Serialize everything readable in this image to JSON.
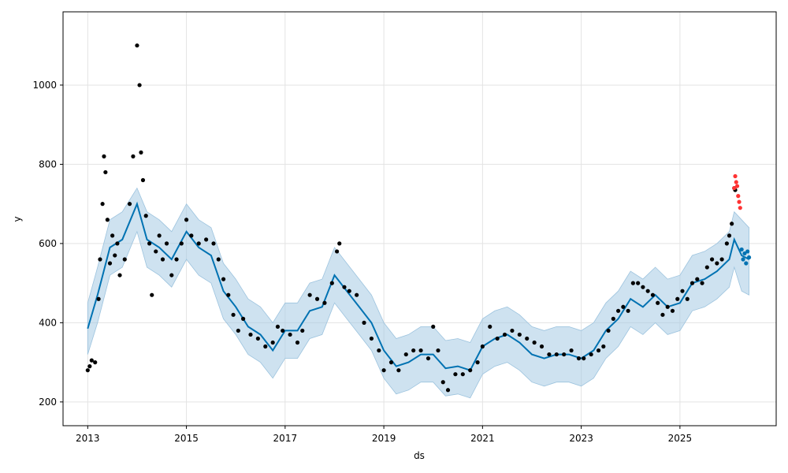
{
  "chart_data": {
    "type": "scatter",
    "title": "",
    "xlabel": "ds",
    "ylabel": "y",
    "xlim": [
      2012.5,
      2026.95
    ],
    "ylim": [
      140,
      1185
    ],
    "x_ticks": [
      2013,
      2015,
      2017,
      2019,
      2021,
      2023,
      2025
    ],
    "y_ticks": [
      200,
      400,
      600,
      800,
      1000
    ],
    "grid": true,
    "legend": "none",
    "colors": {
      "observed": "#000000",
      "recent": "#ff3333",
      "forecast_line": "#0072b2",
      "interval_fill": "#a6cbe3"
    },
    "series": [
      {
        "role": "observed",
        "x": [
          2013.0,
          2013.04,
          2013.08,
          2013.15,
          2013.22,
          2013.25,
          2013.3,
          2013.33,
          2013.36,
          2013.4,
          2013.45,
          2013.5,
          2013.55,
          2013.6,
          2013.65,
          2013.75,
          2013.85,
          2013.92,
          2014.0,
          2014.05,
          2014.08,
          2014.12,
          2014.18,
          2014.25,
          2014.3,
          2014.38,
          2014.45,
          2014.52,
          2014.6,
          2014.7,
          2014.8,
          2014.9,
          2015.0,
          2015.1,
          2015.25,
          2015.4,
          2015.55,
          2015.65,
          2015.75,
          2015.85,
          2015.95,
          2016.05,
          2016.15,
          2016.3,
          2016.45,
          2016.6,
          2016.75,
          2016.85,
          2016.95,
          2017.1,
          2017.25,
          2017.35,
          2017.5,
          2017.65,
          2017.8,
          2017.95,
          2018.05,
          2018.1,
          2018.2,
          2018.3,
          2018.45,
          2018.6,
          2018.75,
          2018.9,
          2019.0,
          2019.15,
          2019.3,
          2019.45,
          2019.6,
          2019.75,
          2019.9,
          2020.0,
          2020.1,
          2020.2,
          2020.3,
          2020.45,
          2020.6,
          2020.75,
          2020.9,
          2021.0,
          2021.15,
          2021.3,
          2021.45,
          2021.6,
          2021.75,
          2021.9,
          2022.05,
          2022.2,
          2022.35,
          2022.5,
          2022.65,
          2022.8,
          2022.95,
          2023.05,
          2023.2,
          2023.35,
          2023.45,
          2023.55,
          2023.65,
          2023.75,
          2023.85,
          2023.95,
          2024.05,
          2024.15,
          2024.25,
          2024.35,
          2024.45,
          2024.55,
          2024.65,
          2024.75,
          2024.85,
          2024.95,
          2025.05,
          2025.15,
          2025.25,
          2025.35,
          2025.45,
          2025.55,
          2025.65,
          2025.75,
          2025.85,
          2025.95,
          2026.0,
          2026.05,
          2026.1,
          2026.12
        ],
        "y": [
          280,
          290,
          305,
          300,
          460,
          560,
          700,
          820,
          780,
          660,
          550,
          620,
          570,
          600,
          520,
          560,
          700,
          820,
          1100,
          1000,
          830,
          760,
          670,
          600,
          470,
          580,
          620,
          560,
          600,
          520,
          560,
          600,
          660,
          620,
          600,
          610,
          600,
          560,
          510,
          470,
          420,
          380,
          410,
          370,
          360,
          340,
          350,
          390,
          380,
          370,
          350,
          380,
          470,
          460,
          450,
          500,
          580,
          600,
          490,
          480,
          470,
          400,
          360,
          330,
          280,
          300,
          280,
          320,
          330,
          330,
          310,
          390,
          330,
          250,
          230,
          270,
          270,
          280,
          300,
          340,
          390,
          360,
          370,
          380,
          370,
          360,
          350,
          340,
          320,
          320,
          320,
          330,
          310,
          310,
          320,
          330,
          340,
          380,
          410,
          430,
          440,
          430,
          500,
          500,
          490,
          480,
          470,
          450,
          420,
          440,
          430,
          460,
          480,
          460,
          500,
          510,
          500,
          540,
          560,
          550,
          560,
          600,
          620,
          650,
          740,
          735
        ]
      },
      {
        "role": "recent",
        "x": [
          2026.1,
          2026.12,
          2026.14,
          2026.16,
          2026.18,
          2026.2,
          2026.22
        ],
        "y": [
          740,
          770,
          755,
          745,
          720,
          705,
          690
        ]
      },
      {
        "role": "forecast_line",
        "x": [
          2013.0,
          2013.2,
          2013.45,
          2013.7,
          2014.0,
          2014.2,
          2014.45,
          2014.7,
          2015.0,
          2015.25,
          2015.5,
          2015.75,
          2016.0,
          2016.25,
          2016.5,
          2016.75,
          2017.0,
          2017.25,
          2017.5,
          2017.75,
          2018.0,
          2018.25,
          2018.5,
          2018.75,
          2019.0,
          2019.25,
          2019.5,
          2019.75,
          2020.0,
          2020.25,
          2020.5,
          2020.75,
          2021.0,
          2021.25,
          2021.5,
          2021.75,
          2022.0,
          2022.25,
          2022.5,
          2022.75,
          2023.0,
          2023.25,
          2023.5,
          2023.75,
          2024.0,
          2024.25,
          2024.5,
          2024.75,
          2025.0,
          2025.25,
          2025.5,
          2025.75,
          2026.0,
          2026.1,
          2026.25,
          2026.4
        ],
        "y": [
          385,
          470,
          590,
          610,
          700,
          610,
          590,
          560,
          630,
          590,
          570,
          480,
          440,
          390,
          370,
          330,
          380,
          380,
          430,
          440,
          520,
          480,
          440,
          400,
          330,
          290,
          300,
          320,
          320,
          285,
          290,
          280,
          340,
          360,
          370,
          350,
          320,
          310,
          320,
          320,
          310,
          330,
          380,
          410,
          460,
          440,
          470,
          440,
          450,
          500,
          510,
          530,
          560,
          610,
          570,
          560
        ]
      },
      {
        "role": "interval_upper",
        "x": [
          2013.0,
          2013.2,
          2013.45,
          2013.7,
          2014.0,
          2014.2,
          2014.45,
          2014.7,
          2015.0,
          2015.25,
          2015.5,
          2015.75,
          2016.0,
          2016.25,
          2016.5,
          2016.75,
          2017.0,
          2017.25,
          2017.5,
          2017.75,
          2018.0,
          2018.25,
          2018.5,
          2018.75,
          2019.0,
          2019.25,
          2019.5,
          2019.75,
          2020.0,
          2020.25,
          2020.5,
          2020.75,
          2021.0,
          2021.25,
          2021.5,
          2021.75,
          2022.0,
          2022.25,
          2022.5,
          2022.75,
          2023.0,
          2023.25,
          2023.5,
          2023.75,
          2024.0,
          2024.25,
          2024.5,
          2024.75,
          2025.0,
          2025.25,
          2025.5,
          2025.75,
          2026.0,
          2026.1,
          2026.25,
          2026.4
        ],
        "y": [
          450,
          540,
          660,
          680,
          740,
          680,
          660,
          630,
          700,
          660,
          640,
          550,
          510,
          460,
          440,
          400,
          450,
          450,
          500,
          510,
          590,
          550,
          510,
          470,
          400,
          360,
          370,
          390,
          390,
          355,
          360,
          350,
          410,
          430,
          440,
          420,
          390,
          380,
          390,
          390,
          380,
          400,
          450,
          480,
          530,
          510,
          540,
          510,
          520,
          570,
          580,
          600,
          630,
          680,
          660,
          640
        ]
      },
      {
        "role": "interval_lower",
        "x": [
          2013.0,
          2013.2,
          2013.45,
          2013.7,
          2014.0,
          2014.2,
          2014.45,
          2014.7,
          2015.0,
          2015.25,
          2015.5,
          2015.75,
          2016.0,
          2016.25,
          2016.5,
          2016.75,
          2017.0,
          2017.25,
          2017.5,
          2017.75,
          2018.0,
          2018.25,
          2018.5,
          2018.75,
          2019.0,
          2019.25,
          2019.5,
          2019.75,
          2020.0,
          2020.25,
          2020.5,
          2020.75,
          2021.0,
          2021.25,
          2021.5,
          2021.75,
          2022.0,
          2022.25,
          2022.5,
          2022.75,
          2023.0,
          2023.25,
          2023.5,
          2023.75,
          2024.0,
          2024.25,
          2024.5,
          2024.75,
          2025.0,
          2025.25,
          2025.5,
          2025.75,
          2026.0,
          2026.1,
          2026.25,
          2026.4
        ],
        "y": [
          320,
          400,
          520,
          540,
          630,
          540,
          520,
          490,
          560,
          520,
          500,
          410,
          370,
          320,
          300,
          260,
          310,
          310,
          360,
          370,
          450,
          410,
          370,
          330,
          260,
          220,
          230,
          250,
          250,
          215,
          220,
          210,
          270,
          290,
          300,
          280,
          250,
          240,
          250,
          250,
          240,
          260,
          310,
          340,
          390,
          370,
          400,
          370,
          380,
          430,
          440,
          460,
          490,
          540,
          480,
          470
        ]
      },
      {
        "role": "forecast_points",
        "x": [
          2026.25,
          2026.28,
          2026.31,
          2026.34,
          2026.37,
          2026.4
        ],
        "y": [
          585,
          560,
          575,
          550,
          580,
          565
        ]
      }
    ]
  }
}
